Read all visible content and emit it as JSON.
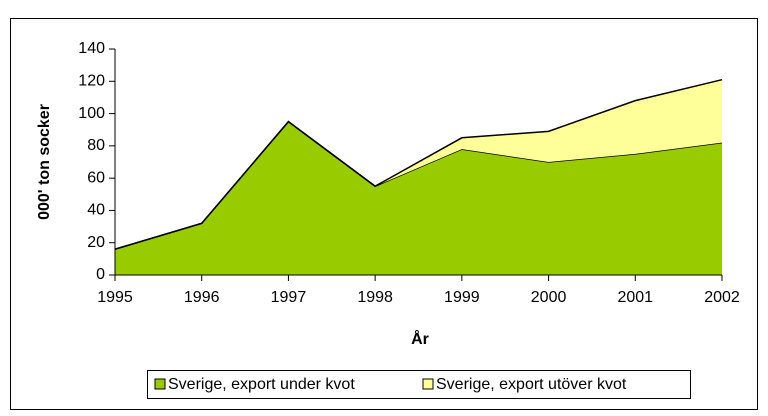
{
  "chart_data": {
    "type": "stacked_area",
    "x_label": "År",
    "y_label": "000' ton socker",
    "categories": [
      "1995",
      "1996",
      "1997",
      "1998",
      "1999",
      "2000",
      "2001",
      "2002"
    ],
    "series": [
      {
        "name": "Sverige, export under kvot",
        "color": "#99cc00",
        "values": [
          16,
          32,
          95,
          55,
          78,
          70,
          75,
          82
        ]
      },
      {
        "name": "Sverige, export utöver kvot",
        "color": "#ffff99",
        "values": [
          0,
          0,
          0,
          0,
          7,
          19,
          33,
          39
        ]
      }
    ],
    "ylim": [
      0,
      140
    ],
    "yticks": [
      0,
      20,
      40,
      60,
      80,
      100,
      120,
      140
    ],
    "legend": "bottom"
  }
}
